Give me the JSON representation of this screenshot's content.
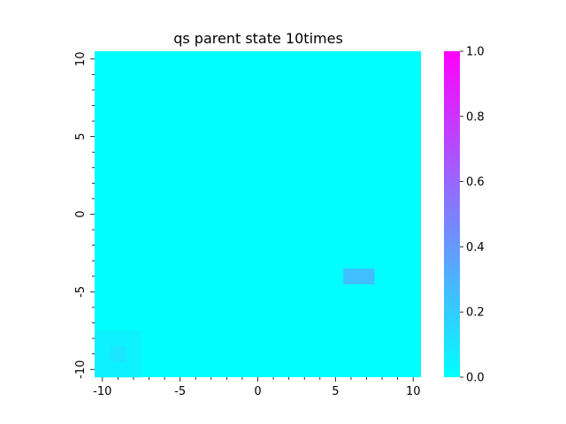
{
  "chart_data": {
    "type": "heatmap",
    "title": "qs parent state  10times",
    "xlabel": "",
    "ylabel": "",
    "x_range": [
      -10.5,
      10.5
    ],
    "y_range": [
      -10.5,
      10.5
    ],
    "grid": false,
    "x_ticks": [
      -10,
      -5,
      0,
      5,
      10
    ],
    "x_tick_labels": [
      "-10",
      "-5",
      "0",
      "5",
      "10"
    ],
    "y_ticks": [
      10,
      5,
      0,
      -5,
      -10
    ],
    "y_tick_labels": [
      "10",
      "5",
      "0",
      "-5",
      "-10"
    ],
    "base_value": 0.0,
    "cells": [
      {
        "x": -10,
        "y": -8,
        "value": 0.05
      },
      {
        "x": -9,
        "y": -8,
        "value": 0.05
      },
      {
        "x": -8,
        "y": -8,
        "value": 0.05
      },
      {
        "x": -10,
        "y": -9,
        "value": 0.05
      },
      {
        "x": -9,
        "y": -9,
        "value": 0.1
      },
      {
        "x": -8,
        "y": -9,
        "value": 0.05
      },
      {
        "x": -10,
        "y": -10,
        "value": 0.05
      },
      {
        "x": -9,
        "y": -10,
        "value": 0.05
      },
      {
        "x": -8,
        "y": -10,
        "value": 0.05
      },
      {
        "x": 6,
        "y": -4,
        "value": 0.25
      },
      {
        "x": 7,
        "y": -4,
        "value": 0.25
      }
    ],
    "colorbar": {
      "colormap": "cool",
      "color_min": "#00ffff",
      "color_max": "#ff00ff",
      "range": [
        0.0,
        1.0
      ],
      "ticks": [
        0.0,
        0.2,
        0.4,
        0.6,
        0.8,
        1.0
      ],
      "tick_labels": [
        "0.0",
        "0.2",
        "0.4",
        "0.6",
        "0.8",
        "1.0"
      ]
    }
  }
}
